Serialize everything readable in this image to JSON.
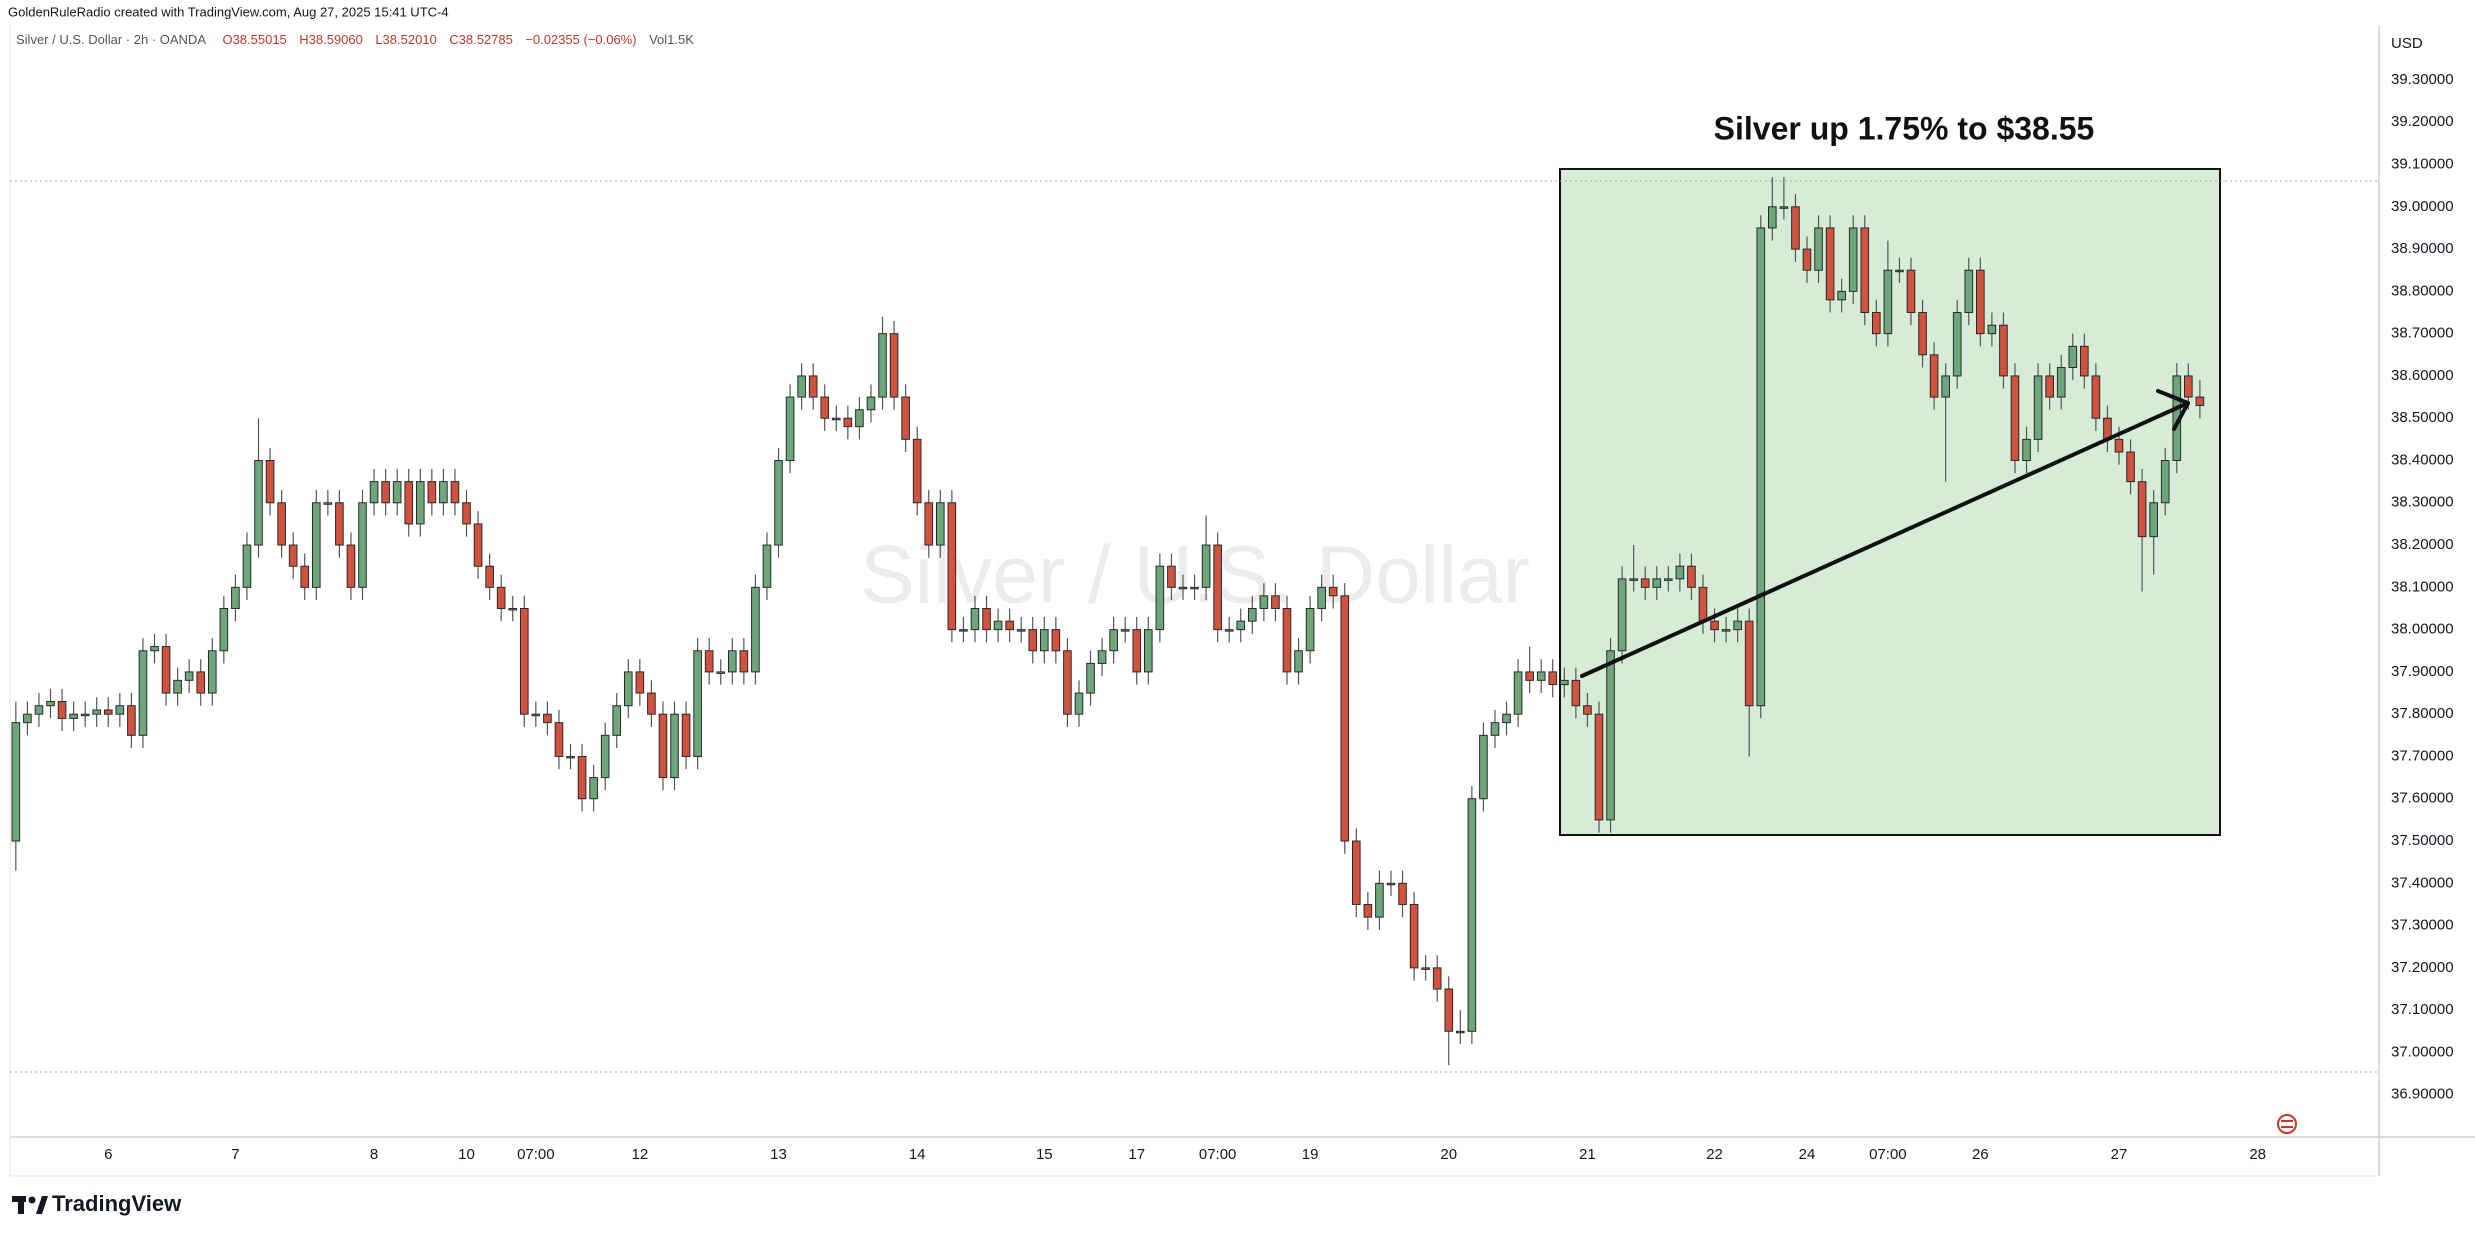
{
  "header": {
    "credit": "GoldenRuleRadio created with TradingView.com, Aug 27, 2025 15:41 UTC-4",
    "symbol": "Silver / U.S. Dollar · 2h · OANDA",
    "open": "O38.55015",
    "high": "H38.59060",
    "low": "L38.52010",
    "close": "C38.52785",
    "change": "−0.02355 (−0.06%)",
    "volume": "Vol1.5K"
  },
  "footer": {
    "brand": "TradingView"
  },
  "chart_data": {
    "type": "candlestick",
    "watermark": "Silver / U.S. Dollar",
    "annotation": "Silver up 1.75% to $38.55",
    "currency": "USD",
    "up_color": "#6ea67c",
    "down_color": "#d1533f",
    "xlim": [
      -1.37,
      204.5
    ],
    "ylim": [
      36.8,
      39.43
    ],
    "xticks": [
      {
        "value": 8,
        "label": "6"
      },
      {
        "value": 19,
        "label": "7"
      },
      {
        "value": 31,
        "label": "8"
      },
      {
        "value": 39,
        "label": "10"
      },
      {
        "value": 45,
        "label": "07:00"
      },
      {
        "value": 54,
        "label": "12"
      },
      {
        "value": 66,
        "label": "13"
      },
      {
        "value": 78,
        "label": "14"
      },
      {
        "value": 89,
        "label": "15"
      },
      {
        "value": 97,
        "label": "17"
      },
      {
        "value": 104,
        "label": "07:00"
      },
      {
        "value": 112,
        "label": "19"
      },
      {
        "value": 124,
        "label": "20"
      },
      {
        "value": 136,
        "label": "21"
      },
      {
        "value": 147,
        "label": "22"
      },
      {
        "value": 155,
        "label": "24"
      },
      {
        "value": 162,
        "label": "07:00"
      },
      {
        "value": 170,
        "label": "26"
      },
      {
        "value": 182,
        "label": "27"
      },
      {
        "value": 194,
        "label": "28"
      }
    ],
    "yticks": [
      {
        "value": 36.9,
        "label": "36.90000"
      },
      {
        "value": 37.0,
        "label": "37.00000"
      },
      {
        "value": 37.1,
        "label": "37.10000"
      },
      {
        "value": 37.2,
        "label": "37.20000"
      },
      {
        "value": 37.3,
        "label": "37.30000"
      },
      {
        "value": 37.4,
        "label": "37.40000"
      },
      {
        "value": 37.5,
        "label": "37.50000"
      },
      {
        "value": 37.6,
        "label": "37.60000"
      },
      {
        "value": 37.7,
        "label": "37.70000"
      },
      {
        "value": 37.8,
        "label": "37.80000"
      },
      {
        "value": 37.9,
        "label": "37.90000"
      },
      {
        "value": 38.0,
        "label": "38.00000"
      },
      {
        "value": 38.1,
        "label": "38.10000"
      },
      {
        "value": 38.2,
        "label": "38.20000"
      },
      {
        "value": 38.3,
        "label": "38.30000"
      },
      {
        "value": 38.4,
        "label": "38.40000"
      },
      {
        "value": 38.5,
        "label": "38.50000"
      },
      {
        "value": 38.6,
        "label": "38.60000"
      },
      {
        "value": 38.7,
        "label": "38.70000"
      },
      {
        "value": 38.8,
        "label": "38.80000"
      },
      {
        "value": 38.9,
        "label": "38.90000"
      },
      {
        "value": 39.0,
        "label": "39.00000"
      },
      {
        "value": 39.1,
        "label": "39.10000"
      },
      {
        "value": 39.2,
        "label": "39.20000"
      },
      {
        "value": 39.3,
        "label": "39.30000"
      }
    ],
    "open": [
      37.5,
      37.78,
      37.8,
      37.82,
      37.83,
      37.79,
      37.8,
      37.8,
      37.81,
      37.8,
      37.82,
      37.75,
      37.95,
      37.96,
      37.85,
      37.88,
      37.9,
      37.85,
      37.95,
      38.05,
      38.1,
      38.2,
      38.4,
      38.3,
      38.2,
      38.15,
      38.1,
      38.3,
      38.3,
      38.2,
      38.1,
      38.3,
      38.35,
      38.3,
      38.35,
      38.25,
      38.35,
      38.3,
      38.35,
      38.3,
      38.25,
      38.15,
      38.1,
      38.05,
      38.05,
      37.8,
      37.8,
      37.78,
      37.7,
      37.7,
      37.6,
      37.65,
      37.75,
      37.82,
      37.9,
      37.85,
      37.8,
      37.65,
      37.8,
      37.7,
      37.95,
      37.9,
      37.9,
      37.95,
      37.9,
      38.1,
      38.2,
      38.4,
      38.55,
      38.6,
      38.55,
      38.5,
      38.5,
      38.48,
      38.52,
      38.55,
      38.7,
      38.55,
      38.45,
      38.3,
      38.2,
      38.3,
      38.0,
      38.0,
      38.05,
      38.0,
      38.02,
      38.0,
      38.0,
      37.95,
      38.0,
      37.95,
      37.8,
      37.85,
      37.92,
      37.95,
      38.0,
      38.0,
      37.9,
      38.0,
      38.15,
      38.1,
      38.1,
      38.1,
      38.2,
      38.0,
      38.0,
      38.02,
      38.05,
      38.08,
      38.05,
      37.9,
      37.95,
      38.05,
      38.1,
      38.08,
      37.5,
      37.35,
      37.32,
      37.4,
      37.4,
      37.35,
      37.2,
      37.2,
      37.15,
      37.05,
      37.05,
      37.6,
      37.75,
      37.78,
      37.8,
      37.9,
      37.88,
      37.9,
      37.87,
      37.88,
      37.82,
      37.8,
      37.55,
      37.95,
      38.12,
      38.12,
      38.1,
      38.12,
      38.12,
      38.15,
      38.1,
      38.02,
      38.0,
      38.0,
      38.02,
      37.82,
      38.95,
      39.0,
      39.0,
      38.9,
      38.85,
      38.95,
      38.78,
      38.8,
      38.95,
      38.75,
      38.7,
      38.85,
      38.85,
      38.75,
      38.65,
      38.55,
      38.6,
      38.75,
      38.85,
      38.7,
      38.72,
      38.6,
      38.4,
      38.45,
      38.6,
      38.55,
      38.62,
      38.67,
      38.6,
      38.5,
      38.45,
      38.42,
      38.35,
      38.22,
      38.3,
      38.4,
      38.6,
      38.55
    ],
    "high": [
      37.83,
      37.83,
      37.85,
      37.86,
      37.86,
      37.83,
      37.83,
      37.84,
      37.84,
      37.85,
      37.85,
      37.98,
      37.99,
      37.99,
      37.91,
      37.93,
      37.93,
      37.98,
      38.08,
      38.13,
      38.23,
      38.5,
      38.43,
      38.33,
      38.23,
      38.18,
      38.33,
      38.33,
      38.33,
      38.23,
      38.33,
      38.38,
      38.38,
      38.38,
      38.38,
      38.38,
      38.38,
      38.38,
      38.38,
      38.33,
      38.28,
      38.18,
      38.13,
      38.08,
      38.08,
      37.83,
      37.83,
      37.81,
      37.73,
      37.73,
      37.68,
      37.78,
      37.85,
      37.93,
      37.93,
      37.88,
      37.83,
      37.83,
      37.83,
      37.98,
      37.98,
      37.93,
      37.98,
      37.98,
      38.13,
      38.23,
      38.43,
      38.58,
      38.63,
      38.63,
      38.58,
      38.53,
      38.53,
      38.55,
      38.58,
      38.74,
      38.73,
      38.58,
      38.48,
      38.33,
      38.33,
      38.33,
      38.03,
      38.08,
      38.08,
      38.05,
      38.05,
      38.03,
      38.03,
      38.03,
      38.03,
      37.98,
      37.88,
      37.95,
      37.98,
      38.03,
      38.03,
      38.03,
      38.03,
      38.18,
      38.18,
      38.13,
      38.13,
      38.27,
      38.23,
      38.03,
      38.05,
      38.08,
      38.11,
      38.11,
      38.08,
      37.98,
      38.08,
      38.13,
      38.13,
      38.11,
      37.53,
      37.38,
      37.43,
      37.43,
      37.43,
      37.38,
      37.23,
      37.23,
      37.18,
      37.1,
      37.63,
      37.78,
      37.81,
      37.83,
      37.93,
      37.96,
      37.93,
      37.93,
      37.91,
      37.91,
      37.85,
      37.83,
      37.98,
      38.15,
      38.2,
      38.15,
      38.15,
      38.15,
      38.18,
      38.18,
      38.13,
      38.05,
      38.03,
      38.05,
      38.05,
      38.98,
      39.07,
      39.07,
      39.03,
      38.93,
      38.98,
      38.98,
      38.83,
      38.98,
      38.98,
      38.78,
      38.92,
      38.88,
      38.88,
      38.78,
      38.68,
      38.63,
      38.78,
      38.88,
      38.88,
      38.75,
      38.75,
      38.63,
      38.48,
      38.63,
      38.63,
      38.65,
      38.7,
      38.7,
      38.63,
      38.53,
      38.48,
      38.45,
      38.38,
      38.33,
      38.43,
      38.63,
      38.63,
      38.59
    ],
    "low": [
      37.43,
      37.75,
      37.77,
      37.79,
      37.76,
      37.76,
      37.77,
      37.77,
      37.77,
      37.77,
      37.72,
      37.72,
      37.92,
      37.82,
      37.82,
      37.85,
      37.82,
      37.82,
      37.92,
      38.02,
      38.07,
      38.17,
      38.27,
      38.17,
      38.12,
      38.07,
      38.07,
      38.27,
      38.17,
      38.07,
      38.07,
      38.27,
      38.27,
      38.27,
      38.22,
      38.22,
      38.27,
      38.27,
      38.27,
      38.22,
      38.12,
      38.07,
      38.02,
      38.02,
      37.77,
      37.77,
      37.75,
      37.67,
      37.67,
      37.57,
      37.57,
      37.62,
      37.72,
      37.79,
      37.82,
      37.77,
      37.62,
      37.62,
      37.67,
      37.67,
      37.87,
      37.87,
      37.87,
      37.87,
      37.87,
      38.07,
      38.17,
      38.37,
      38.52,
      38.52,
      38.47,
      38.47,
      38.45,
      38.45,
      38.49,
      38.52,
      38.52,
      38.42,
      38.27,
      38.17,
      38.17,
      37.97,
      37.97,
      37.97,
      37.97,
      37.97,
      37.97,
      37.97,
      37.92,
      37.92,
      37.92,
      37.77,
      37.77,
      37.82,
      37.89,
      37.92,
      37.97,
      37.87,
      37.87,
      37.97,
      38.07,
      38.07,
      38.07,
      38.07,
      37.97,
      37.97,
      37.97,
      37.99,
      38.02,
      38.02,
      37.87,
      37.87,
      37.92,
      38.02,
      38.05,
      37.47,
      37.32,
      37.29,
      37.29,
      37.37,
      37.32,
      37.17,
      37.17,
      37.12,
      36.97,
      37.02,
      37.02,
      37.57,
      37.72,
      37.75,
      37.77,
      37.85,
      37.85,
      37.84,
      37.84,
      37.79,
      37.77,
      37.52,
      37.52,
      37.92,
      38.09,
      38.07,
      38.07,
      38.09,
      38.09,
      38.07,
      37.99,
      37.97,
      37.97,
      37.97,
      37.7,
      37.79,
      38.92,
      38.97,
      38.87,
      38.82,
      38.82,
      38.75,
      38.75,
      38.77,
      38.72,
      38.67,
      38.67,
      38.82,
      38.72,
      38.62,
      38.52,
      38.35,
      38.57,
      38.72,
      38.67,
      38.67,
      38.57,
      38.37,
      38.37,
      38.42,
      38.52,
      38.52,
      38.59,
      38.57,
      38.47,
      38.42,
      38.39,
      38.32,
      38.09,
      38.13,
      38.27,
      38.37,
      38.52,
      38.5
    ],
    "close": [
      37.78,
      37.8,
      37.82,
      37.83,
      37.79,
      37.8,
      37.8,
      37.81,
      37.8,
      37.82,
      37.75,
      37.95,
      37.96,
      37.85,
      37.88,
      37.9,
      37.85,
      37.95,
      38.05,
      38.1,
      38.2,
      38.4,
      38.3,
      38.2,
      38.15,
      38.1,
      38.3,
      38.3,
      38.2,
      38.1,
      38.3,
      38.35,
      38.3,
      38.35,
      38.25,
      38.35,
      38.3,
      38.35,
      38.3,
      38.25,
      38.15,
      38.1,
      38.05,
      38.05,
      37.8,
      37.8,
      37.78,
      37.7,
      37.7,
      37.6,
      37.65,
      37.75,
      37.82,
      37.9,
      37.85,
      37.8,
      37.65,
      37.8,
      37.7,
      37.95,
      37.9,
      37.9,
      37.95,
      37.9,
      38.1,
      38.2,
      38.4,
      38.55,
      38.6,
      38.55,
      38.5,
      38.5,
      38.48,
      38.52,
      38.55,
      38.7,
      38.55,
      38.45,
      38.3,
      38.2,
      38.3,
      38.0,
      38.0,
      38.05,
      38.0,
      38.02,
      38.0,
      38.0,
      37.95,
      38.0,
      37.95,
      37.8,
      37.85,
      37.92,
      37.95,
      38.0,
      38.0,
      37.9,
      38.0,
      38.15,
      38.1,
      38.1,
      38.1,
      38.2,
      38.0,
      38.0,
      38.02,
      38.05,
      38.08,
      38.05,
      37.9,
      37.95,
      38.05,
      38.1,
      38.08,
      37.5,
      37.35,
      37.32,
      37.4,
      37.4,
      37.35,
      37.2,
      37.2,
      37.15,
      37.05,
      37.05,
      37.6,
      37.75,
      37.78,
      37.8,
      37.9,
      37.88,
      37.9,
      37.87,
      37.88,
      37.82,
      37.8,
      37.55,
      37.95,
      38.12,
      38.12,
      38.1,
      38.12,
      38.12,
      38.15,
      38.1,
      38.02,
      38.0,
      38.0,
      38.02,
      37.82,
      38.95,
      39.0,
      39.0,
      38.9,
      38.85,
      38.95,
      38.78,
      38.8,
      38.95,
      38.75,
      38.7,
      38.85,
      38.85,
      38.75,
      38.65,
      38.55,
      38.6,
      38.75,
      38.85,
      38.7,
      38.72,
      38.6,
      38.4,
      38.45,
      38.6,
      38.55,
      38.62,
      38.67,
      38.6,
      38.5,
      38.45,
      38.42,
      38.35,
      38.22,
      38.3,
      38.4,
      38.6,
      38.55,
      38.53
    ]
  }
}
